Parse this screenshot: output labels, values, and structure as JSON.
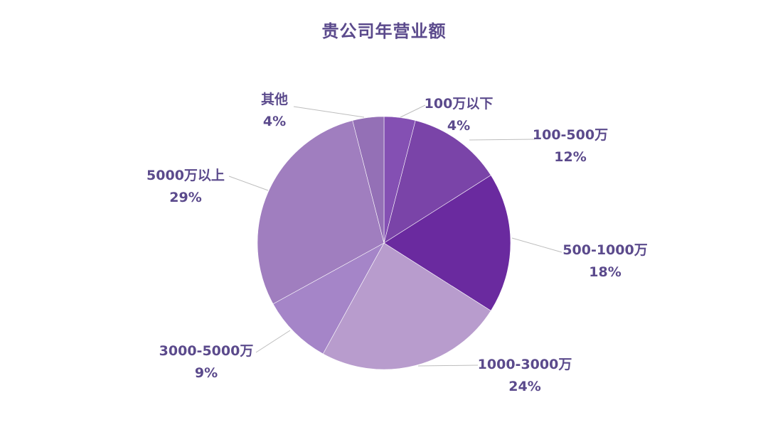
{
  "chart_data": {
    "type": "pie",
    "title": "贵公司年营业额",
    "slices": [
      {
        "label": "100万以下",
        "value": 4,
        "percent_label": "4%",
        "color": "#8450b3"
      },
      {
        "label": "100-500万",
        "value": 12,
        "percent_label": "12%",
        "color": "#7a44a8"
      },
      {
        "label": "500-1000万",
        "value": 18,
        "percent_label": "18%",
        "color": "#6a2a9f"
      },
      {
        "label": "1000-3000万",
        "value": 24,
        "percent_label": "24%",
        "color": "#b89ccd"
      },
      {
        "label": "3000-5000万",
        "value": 9,
        "percent_label": "9%",
        "color": "#a585c8"
      },
      {
        "label": "5000万以上",
        "value": 29,
        "percent_label": "29%",
        "color": "#a07ebf"
      },
      {
        "label": "其他",
        "value": 4,
        "percent_label": "4%",
        "color": "#9470b6"
      }
    ],
    "legend": "none"
  }
}
